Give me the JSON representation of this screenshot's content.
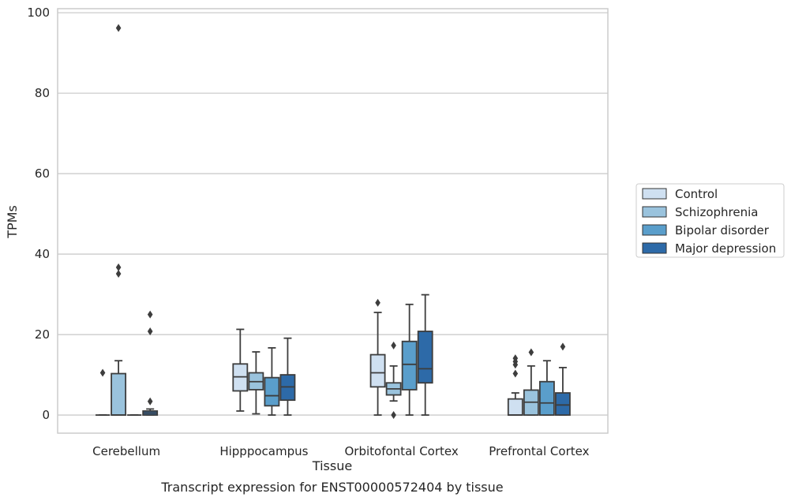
{
  "chart_data": {
    "type": "box",
    "title": "",
    "caption": "Transcript expression for ENST00000572404 by tissue",
    "xlabel": "Tissue",
    "ylabel": "TPMs",
    "ylim": [
      -4.5,
      101
    ],
    "yticks": [
      0,
      20,
      40,
      60,
      80,
      100
    ],
    "grid": "horizontal",
    "legend_position": "right",
    "categories": [
      "Cerebellum",
      "Hipppocampus",
      "Orbitofontal Cortex",
      "Prefrontal Cortex"
    ],
    "series": [
      {
        "name": "Control",
        "color": "#cfe0f1",
        "boxes": [
          {
            "whislo": 0,
            "q1": 0,
            "median": 0,
            "q3": 0,
            "whishi": 0,
            "fliers": [
              10.5
            ]
          },
          {
            "whislo": 1,
            "q1": 6,
            "median": 9.5,
            "q3": 12.7,
            "whishi": 21.3,
            "fliers": []
          },
          {
            "whislo": 0,
            "q1": 7,
            "median": 10.5,
            "q3": 15,
            "whishi": 25.5,
            "fliers": [
              27.9
            ]
          },
          {
            "whislo": 0,
            "q1": 0,
            "median": 0,
            "q3": 4,
            "whishi": 5.5,
            "fliers": [
              10.3,
              12.5,
              13.3,
              14.1
            ]
          }
        ]
      },
      {
        "name": "Schizophrenia",
        "color": "#9ac3dd",
        "boxes": [
          {
            "whislo": 0,
            "q1": 0,
            "median": 0,
            "q3": 10.3,
            "whishi": 13.5,
            "fliers": [
              35.1,
              36.7,
              96.2
            ]
          },
          {
            "whislo": 0.3,
            "q1": 6.3,
            "median": 8.3,
            "q3": 10.5,
            "whishi": 15.7,
            "fliers": []
          },
          {
            "whislo": 3.5,
            "q1": 5,
            "median": 6.5,
            "q3": 8,
            "whishi": 12.2,
            "fliers": [
              0,
              17.3
            ]
          },
          {
            "whislo": 0,
            "q1": 0,
            "median": 3.2,
            "q3": 6.2,
            "whishi": 12.2,
            "fliers": [
              15.6
            ]
          }
        ]
      },
      {
        "name": "Bipolar disorder",
        "color": "#5a9ecb",
        "boxes": [
          {
            "whislo": 0,
            "q1": 0,
            "median": 0,
            "q3": 0,
            "whishi": 0,
            "fliers": []
          },
          {
            "whislo": 0,
            "q1": 2.3,
            "median": 4.8,
            "q3": 9.3,
            "whishi": 16.7,
            "fliers": []
          },
          {
            "whislo": 0,
            "q1": 6.3,
            "median": 12.6,
            "q3": 18.3,
            "whishi": 27.5,
            "fliers": []
          },
          {
            "whislo": 0,
            "q1": 0,
            "median": 3,
            "q3": 8.3,
            "whishi": 13.5,
            "fliers": []
          }
        ]
      },
      {
        "name": "Major depression",
        "color": "#2d6aa8",
        "boxes": [
          {
            "whislo": 0,
            "q1": 0,
            "median": 0.5,
            "q3": 1,
            "whishi": 1.5,
            "fliers": [
              3.4,
              20.8,
              25
            ]
          },
          {
            "whislo": 0,
            "q1": 3.7,
            "median": 7,
            "q3": 10,
            "whishi": 19.1,
            "fliers": []
          },
          {
            "whislo": 0,
            "q1": 8,
            "median": 11.5,
            "q3": 20.8,
            "whishi": 29.9,
            "fliers": []
          },
          {
            "whislo": 0,
            "q1": 0,
            "median": 2.5,
            "q3": 5.5,
            "whishi": 11.8,
            "fliers": [
              17
            ]
          }
        ]
      }
    ]
  }
}
